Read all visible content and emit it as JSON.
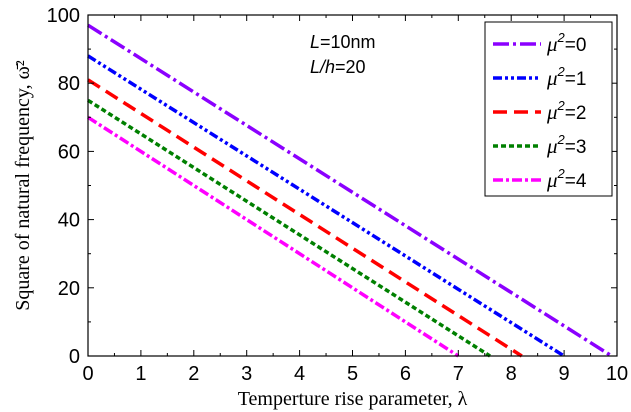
{
  "chart_data": {
    "type": "line",
    "title": "",
    "xlabel": "Temperture rise parameter, λ",
    "ylabel": "Square of natural frequency, ω̄²",
    "xlim": [
      0,
      10
    ],
    "ylim": [
      0,
      100
    ],
    "xticks": [
      "0",
      "1",
      "2",
      "3",
      "4",
      "5",
      "6",
      "7",
      "8",
      "9",
      "10"
    ],
    "yticks": [
      "0",
      "20",
      "40",
      "60",
      "80",
      "100"
    ],
    "annotations": [
      {
        "var": "L",
        "value": "=10nm"
      },
      {
        "var": "L/h",
        "value": "=20"
      }
    ],
    "legend_position": "top-right",
    "series": [
      {
        "name": "μ²=0",
        "label_var": "μ",
        "label_sup": "2",
        "label_val": "=0",
        "color": "#8B00FF",
        "dash": "16,4,3,4",
        "x": [
          0,
          9.9
        ],
        "y": [
          97,
          0
        ]
      },
      {
        "name": "μ²=1",
        "label_var": "μ",
        "label_sup": "2",
        "label_val": "=1",
        "color": "#0000FF",
        "dash": "9,3,3,3,3,3",
        "x": [
          0,
          9.0
        ],
        "y": [
          88,
          0
        ]
      },
      {
        "name": "μ²=2",
        "label_var": "μ",
        "label_sup": "2",
        "label_val": "=2",
        "color": "#FF0000",
        "dash": "14,7",
        "x": [
          0,
          8.2
        ],
        "y": [
          81,
          0
        ]
      },
      {
        "name": "μ²=3",
        "label_var": "μ",
        "label_sup": "2",
        "label_val": "=3",
        "color": "#008000",
        "dash": "5,3",
        "x": [
          0,
          7.6
        ],
        "y": [
          75,
          0
        ]
      },
      {
        "name": "μ²=4",
        "label_var": "μ",
        "label_sup": "2",
        "label_val": "=4",
        "color": "#FF00FF",
        "dash": "10,3,3,3",
        "x": [
          0,
          7.0
        ],
        "y": [
          70,
          0
        ]
      }
    ]
  }
}
